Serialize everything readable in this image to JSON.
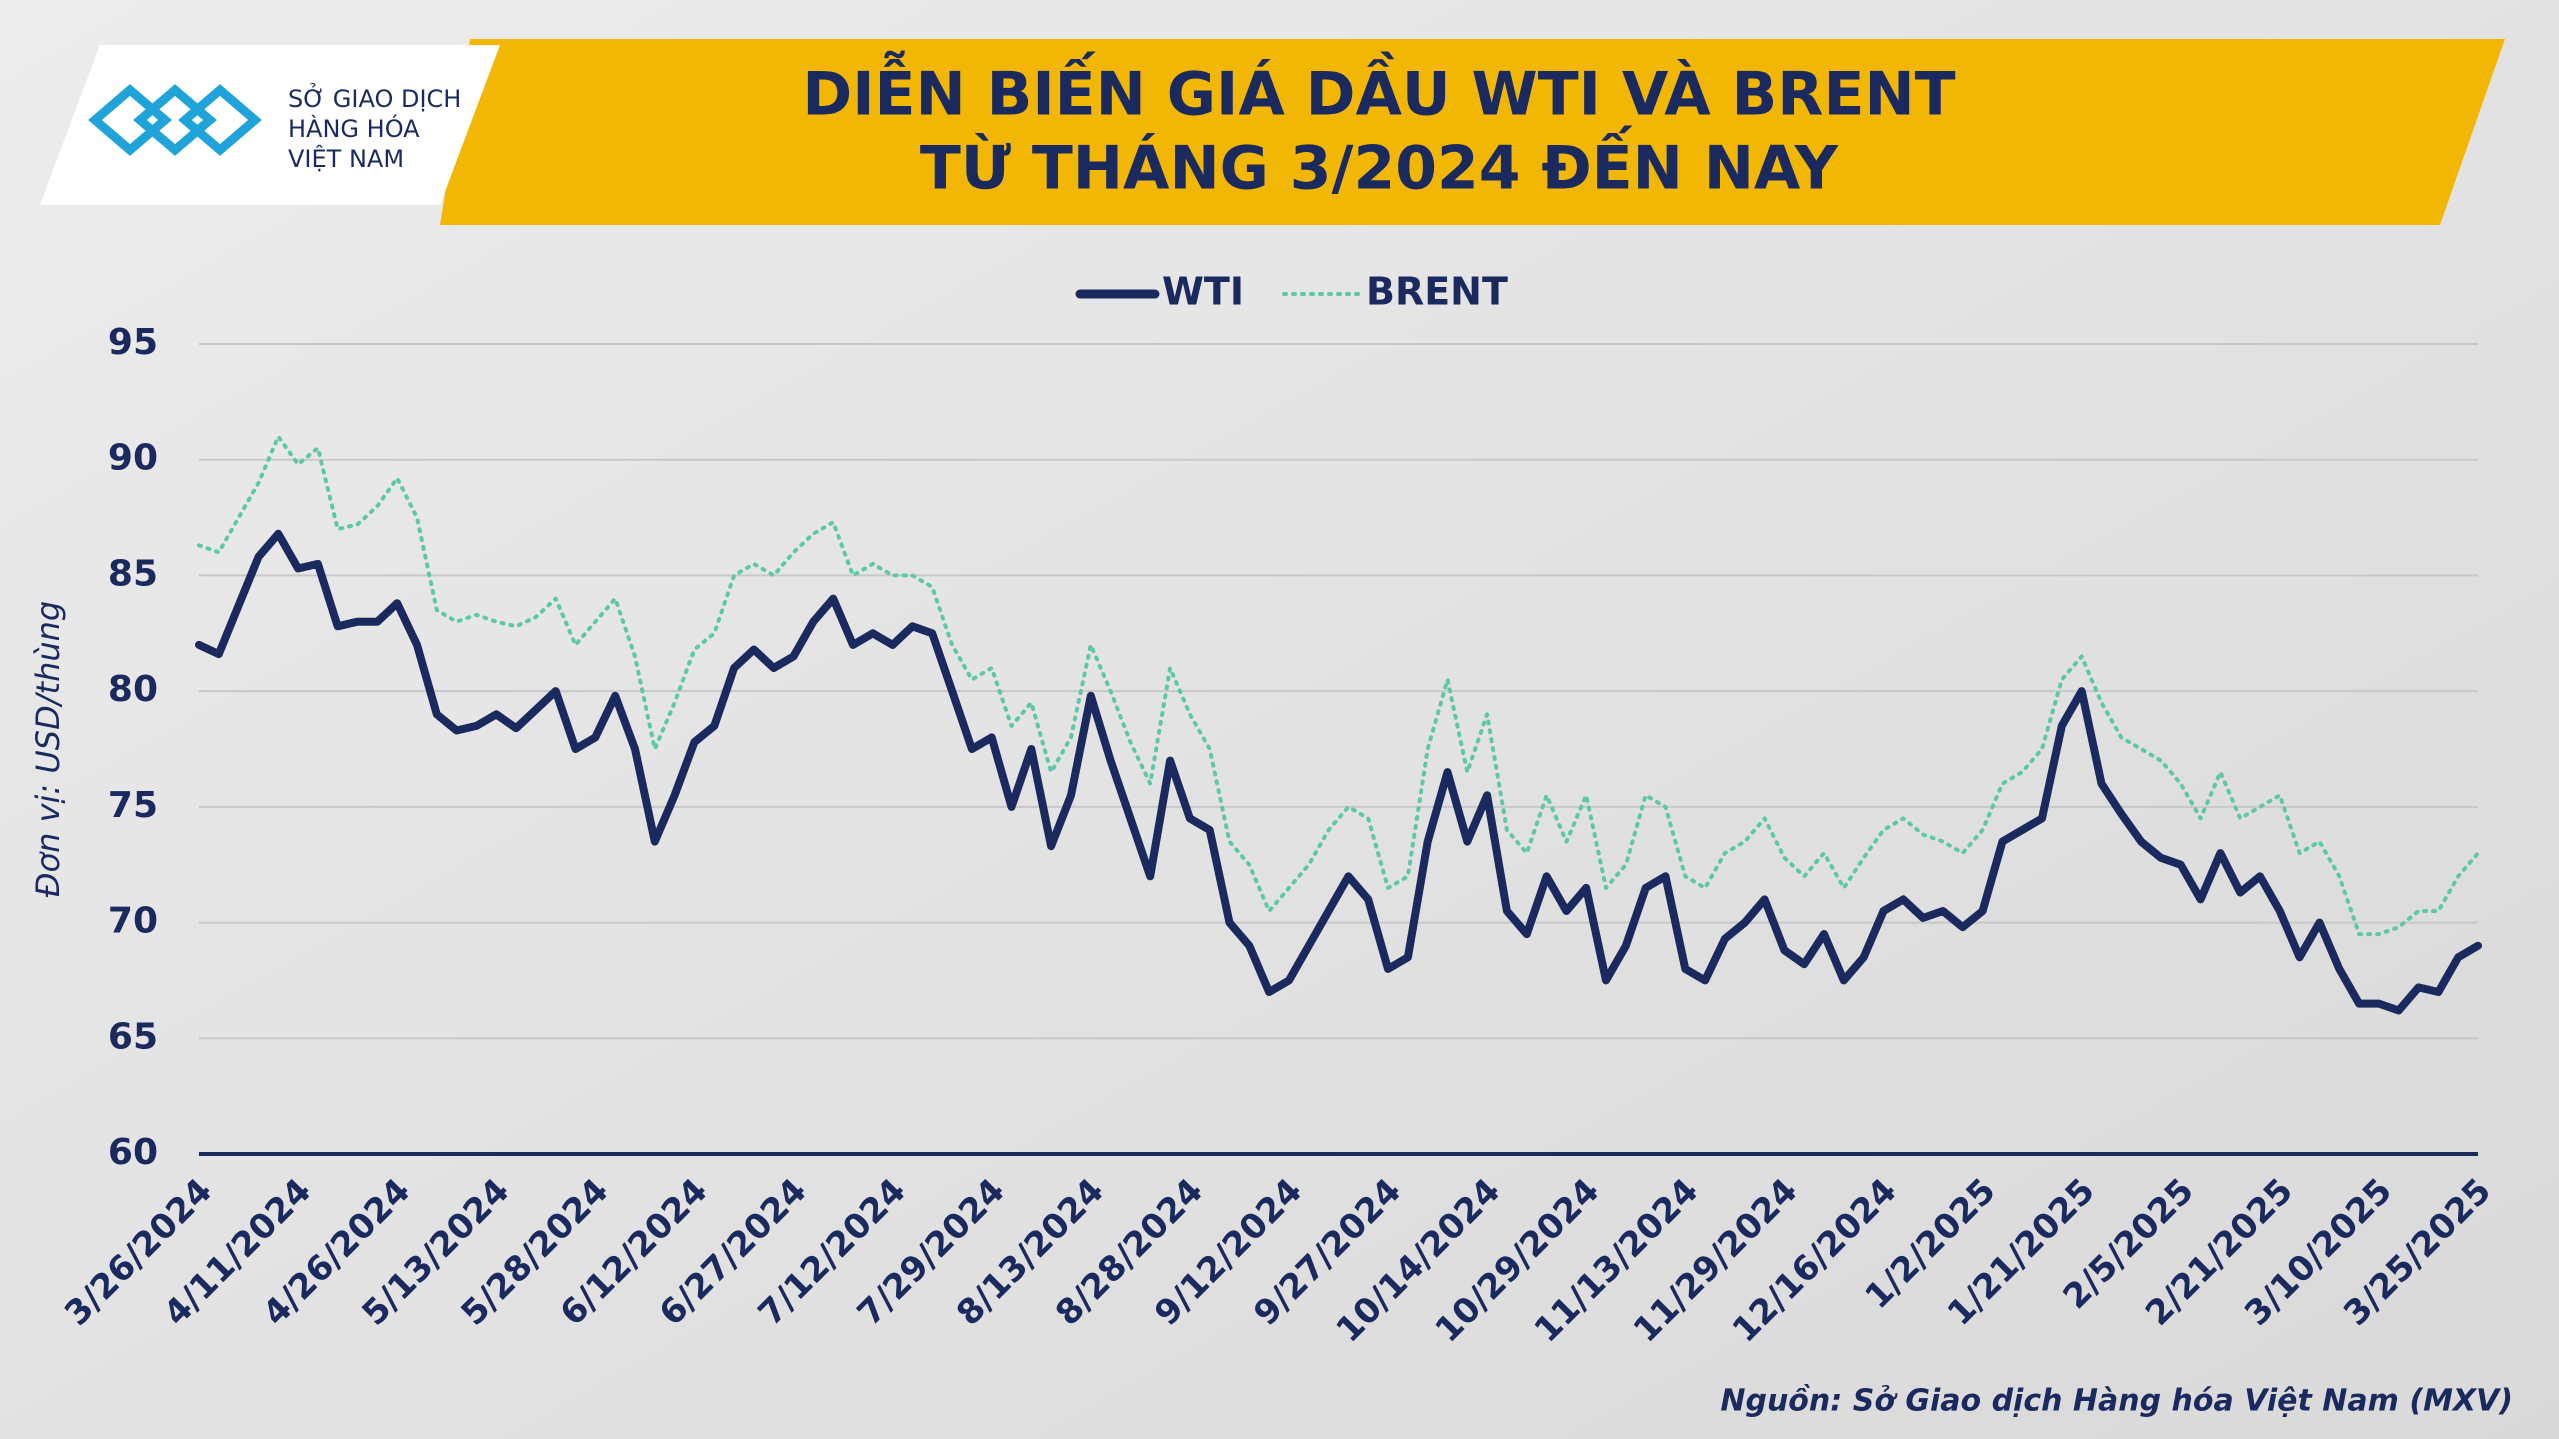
{
  "logo": [
    "SỞ GIAO DỊCH",
    "HÀNG HÓA",
    "VIỆT NAM"
  ],
  "chart_data": {
    "type": "line",
    "title": "DIỄN BIẾN GIÁ DẦU WTI VÀ BRENT",
    "subtitle": "TỪ THÁNG 3/2024 ĐẾN NAY",
    "y_label": "Đơn vị: USD/thùng",
    "source": "Nguồn: Sở Giao dịch Hàng hóa Việt Nam (MXV)",
    "categories": [
      "3/26/2024",
      null,
      null,
      null,
      null,
      "4/11/2024",
      null,
      null,
      null,
      null,
      "4/26/2024",
      null,
      null,
      null,
      null,
      "5/13/2024",
      null,
      null,
      null,
      null,
      "5/28/2024",
      null,
      null,
      null,
      null,
      "6/12/2024",
      null,
      null,
      null,
      null,
      "6/27/2024",
      null,
      null,
      null,
      null,
      "7/12/2024",
      null,
      null,
      null,
      null,
      "7/29/2024",
      null,
      null,
      null,
      null,
      "8/13/2024",
      null,
      null,
      null,
      null,
      "8/28/2024",
      null,
      null,
      null,
      null,
      "9/12/2024",
      null,
      null,
      null,
      null,
      "9/27/2024",
      null,
      null,
      null,
      null,
      "10/14/2024",
      null,
      null,
      null,
      null,
      "10/29/2024",
      null,
      null,
      null,
      null,
      "11/13/2024",
      null,
      null,
      null,
      null,
      "11/29/2024",
      null,
      null,
      null,
      null,
      "12/16/2024",
      null,
      null,
      null,
      null,
      "1/2/2025",
      null,
      null,
      null,
      null,
      "1/21/2025",
      null,
      null,
      null,
      null,
      "2/5/2025",
      null,
      null,
      null,
      null,
      "2/21/2025",
      null,
      null,
      null,
      null,
      "3/10/2025",
      null,
      null,
      null,
      null,
      "3/25/2025"
    ],
    "series": [
      {
        "name": "WTI",
        "color": "#1b2a5e",
        "style": "solid",
        "values": [
          82.0,
          81.6,
          83.7,
          85.8,
          86.8,
          85.3,
          85.5,
          82.8,
          83.0,
          83.0,
          83.8,
          82.0,
          79.0,
          78.3,
          78.5,
          79.0,
          78.4,
          79.2,
          80.0,
          77.5,
          78.0,
          79.8,
          77.5,
          73.5,
          75.5,
          77.8,
          78.5,
          81.0,
          81.8,
          81.0,
          81.5,
          83.0,
          84.0,
          82.0,
          82.5,
          82.0,
          82.8,
          82.5,
          80.0,
          77.5,
          78.0,
          75.0,
          77.5,
          73.3,
          75.5,
          79.8,
          77.0,
          74.5,
          72.0,
          77.0,
          74.5,
          74.0,
          70.0,
          69.0,
          67.0,
          67.5,
          69.0,
          70.5,
          72.0,
          71.0,
          68.0,
          68.5,
          73.5,
          76.5,
          73.5,
          75.5,
          70.5,
          69.5,
          72.0,
          70.5,
          71.5,
          67.5,
          69.0,
          71.5,
          72.0,
          68.0,
          67.5,
          69.3,
          70.0,
          71.0,
          68.8,
          68.2,
          69.5,
          67.5,
          68.5,
          70.5,
          71.0,
          70.2,
          70.5,
          69.8,
          70.5,
          73.5,
          74.0,
          74.5,
          78.5,
          80.0,
          76.0,
          74.7,
          73.5,
          72.8,
          72.5,
          71.0,
          73.0,
          71.3,
          72.0,
          70.5,
          68.5,
          70.0,
          68.0,
          66.5,
          66.5,
          66.2,
          67.2,
          67.0,
          68.5,
          69.0
        ]
      },
      {
        "name": "BRENT",
        "color": "#5cc8a8",
        "style": "dotted",
        "values": [
          86.3,
          86.0,
          87.5,
          89.0,
          91.0,
          89.8,
          90.5,
          87.0,
          87.2,
          88.0,
          89.2,
          87.5,
          83.5,
          83.0,
          83.3,
          83.0,
          82.8,
          83.2,
          84.0,
          82.0,
          83.0,
          84.0,
          81.5,
          77.5,
          79.5,
          81.8,
          82.5,
          85.0,
          85.5,
          85.0,
          86.0,
          86.8,
          87.3,
          85.0,
          85.5,
          85.0,
          85.0,
          84.5,
          82.0,
          80.5,
          81.0,
          78.5,
          79.5,
          76.5,
          78.0,
          82.0,
          80.0,
          77.8,
          76.0,
          81.0,
          79.0,
          77.5,
          73.5,
          72.5,
          70.5,
          71.5,
          72.5,
          74.0,
          75.0,
          74.5,
          71.5,
          72.0,
          77.5,
          80.5,
          76.5,
          79.0,
          74.0,
          73.0,
          75.5,
          73.5,
          75.5,
          71.5,
          72.5,
          75.5,
          75.0,
          72.0,
          71.5,
          73.0,
          73.5,
          74.5,
          72.8,
          72.0,
          73.0,
          71.5,
          72.8,
          74.0,
          74.5,
          73.8,
          73.5,
          73.0,
          74.0,
          76.0,
          76.5,
          77.5,
          80.5,
          81.5,
          79.5,
          78.0,
          77.5,
          77.0,
          76.0,
          74.5,
          76.5,
          74.5,
          75.0,
          75.5,
          73.0,
          73.5,
          72.0,
          69.5,
          69.5,
          69.8,
          70.5,
          70.5,
          72.0,
          73.0
        ]
      }
    ],
    "ylim": [
      60,
      95
    ],
    "yticks": [
      60,
      65,
      70,
      75,
      80,
      85,
      90,
      95
    ],
    "grid": true,
    "legend": "top"
  }
}
